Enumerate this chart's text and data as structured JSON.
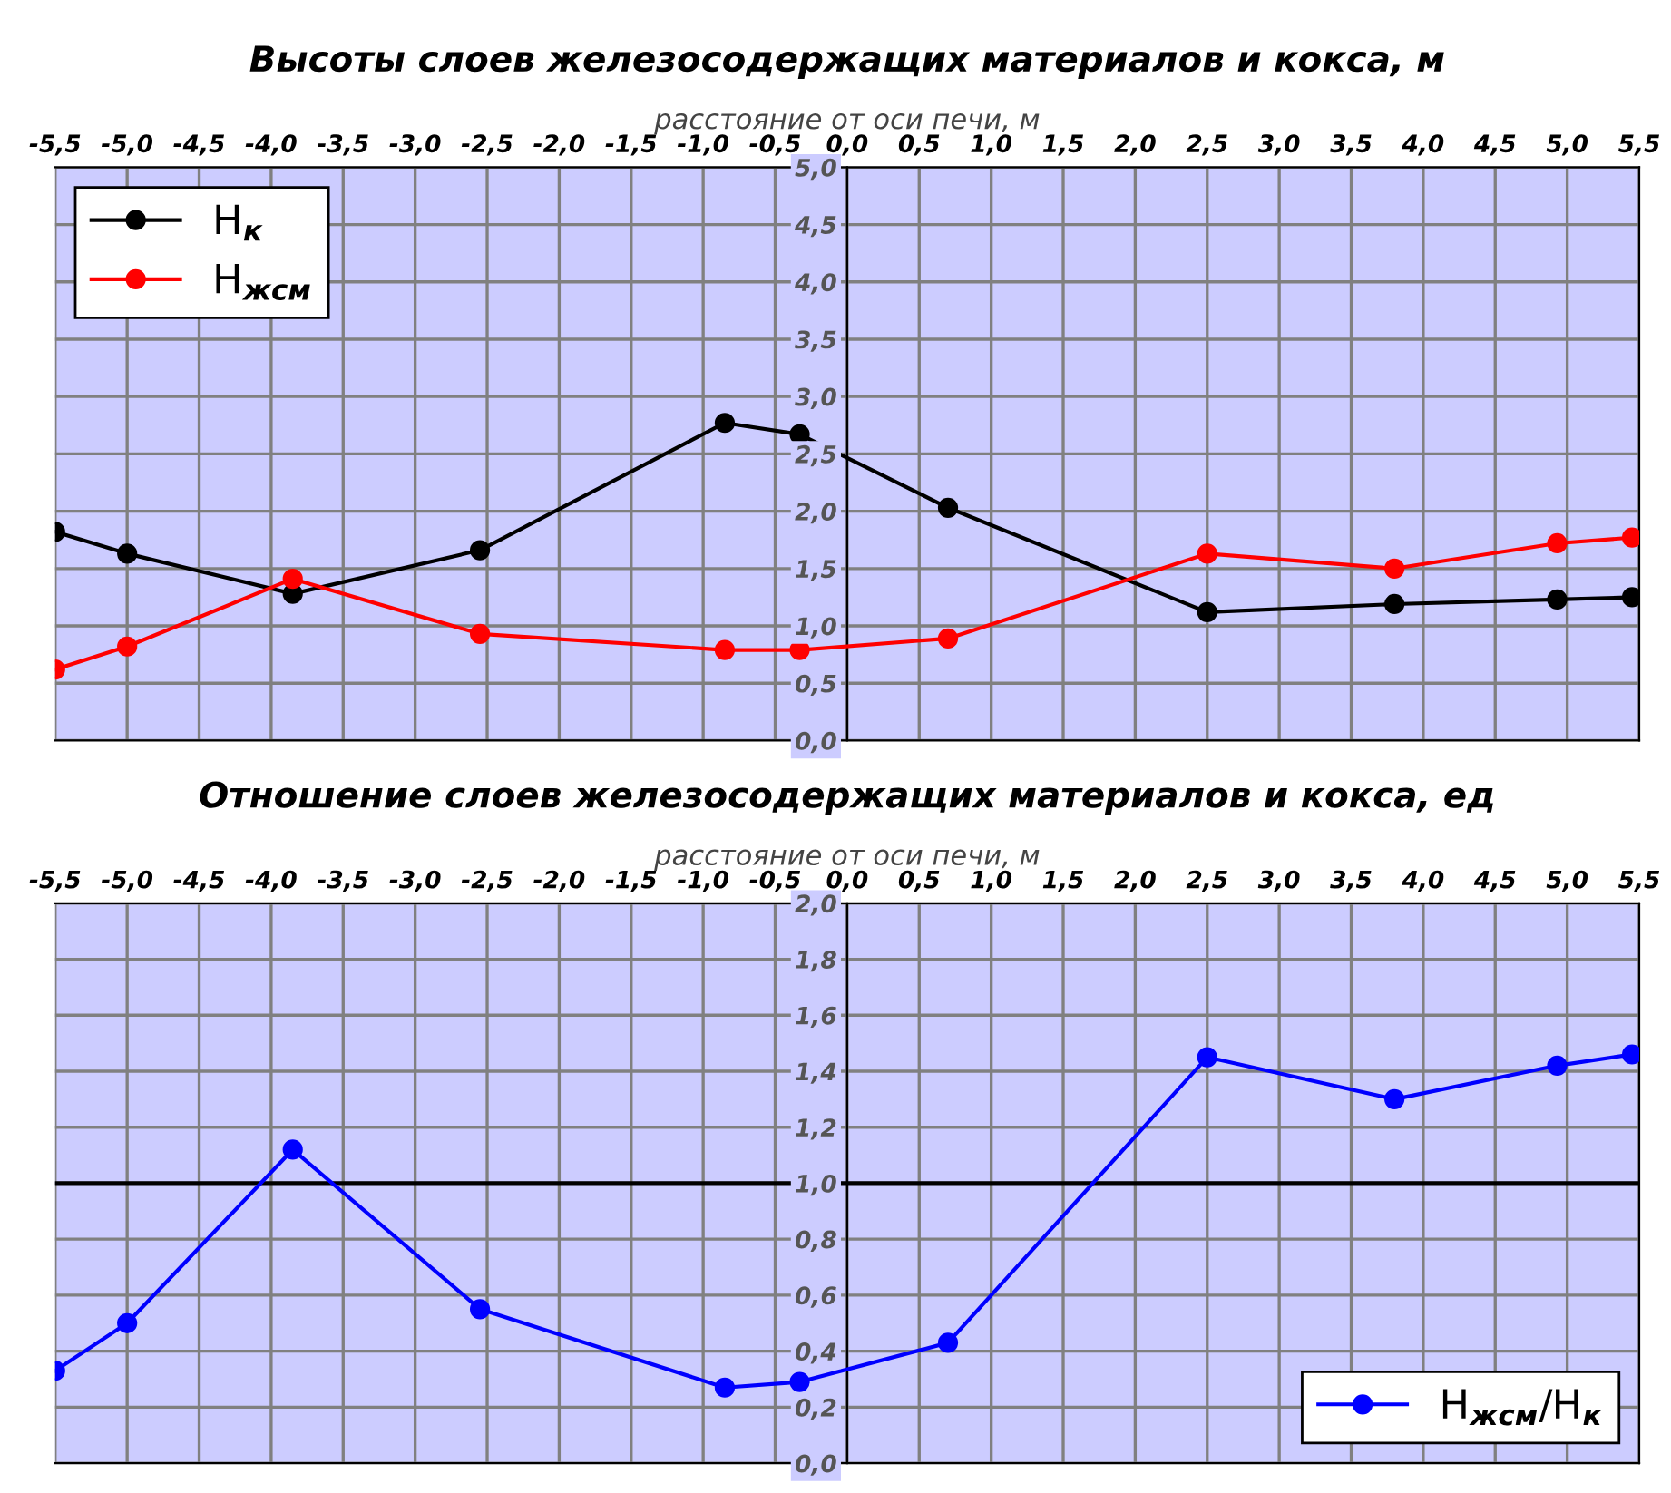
{
  "chart_data": [
    {
      "type": "line",
      "title": "Высоты слоев железосодержащих материалов и кокса, м",
      "xlabel": "расстояние от оси печи, м",
      "x": [
        -5.5,
        -5.0,
        -3.85,
        -2.55,
        -0.85,
        -0.33,
        0.7,
        2.5,
        3.8,
        4.93,
        5.45
      ],
      "series": [
        {
          "name": "H$_{к}$",
          "color": "#000000",
          "values": [
            1.82,
            1.63,
            1.28,
            1.66,
            2.77,
            2.67,
            2.03,
            1.12,
            1.19,
            1.23,
            1.25
          ]
        },
        {
          "name": "H$_{жсм}$",
          "color": "#ff0000",
          "values": [
            0.62,
            0.82,
            1.41,
            0.93,
            0.79,
            0.79,
            0.89,
            1.63,
            1.5,
            1.72,
            1.77
          ]
        }
      ],
      "xlim": [
        -5.5,
        5.5
      ],
      "xticks": [
        {
          "value": -5.5,
          "label": "-5,5"
        },
        {
          "value": -5.0,
          "label": "-5,0"
        },
        {
          "value": -4.5,
          "label": "-4,5"
        },
        {
          "value": -4.0,
          "label": "-4,0"
        },
        {
          "value": -3.5,
          "label": "-3,5"
        },
        {
          "value": -3.0,
          "label": "-3,0"
        },
        {
          "value": -2.5,
          "label": "-2,5"
        },
        {
          "value": -2.0,
          "label": "-2,0"
        },
        {
          "value": -1.5,
          "label": "-1,5"
        },
        {
          "value": -1.0,
          "label": "-1,0"
        },
        {
          "value": -0.5,
          "label": "-0,5"
        },
        {
          "value": 0.0,
          "label": "0,0"
        },
        {
          "value": 0.5,
          "label": "0,5"
        },
        {
          "value": 1.0,
          "label": "1,0"
        },
        {
          "value": 1.5,
          "label": "1,5"
        },
        {
          "value": 2.0,
          "label": "2,0"
        },
        {
          "value": 2.5,
          "label": "2,5"
        },
        {
          "value": 3.0,
          "label": "3,0"
        },
        {
          "value": 3.5,
          "label": "3,5"
        },
        {
          "value": 4.0,
          "label": "4,0"
        },
        {
          "value": 4.5,
          "label": "4,5"
        },
        {
          "value": 5.0,
          "label": "5,0"
        },
        {
          "value": 5.5,
          "label": "5,5"
        }
      ],
      "ylim": [
        0,
        5
      ],
      "yticks": [
        {
          "value": 0.0,
          "label": "0,0"
        },
        {
          "value": 0.5,
          "label": "0,5"
        },
        {
          "value": 1.0,
          "label": "1,0"
        },
        {
          "value": 1.5,
          "label": "1,5"
        },
        {
          "value": 2.0,
          "label": "2,0"
        },
        {
          "value": 2.5,
          "label": "2,5"
        },
        {
          "value": 3.0,
          "label": "3,0"
        },
        {
          "value": 3.5,
          "label": "3,5"
        },
        {
          "value": 4.0,
          "label": "4,0"
        },
        {
          "value": 4.5,
          "label": "4,5"
        },
        {
          "value": 5.0,
          "label": "5,0"
        }
      ],
      "grid": true,
      "legend": "upper left",
      "marker": "circle",
      "line_style": "solid"
    },
    {
      "type": "line",
      "title": "Отношение слоев железосодержащих материалов и кокса, ед",
      "xlabel": "расстояние от оси печи, м",
      "x": [
        -5.5,
        -5.0,
        -3.85,
        -2.55,
        -0.85,
        -0.33,
        0.7,
        2.5,
        3.8,
        4.93,
        5.45
      ],
      "series": [
        {
          "name": "H$_{жсм}$/H$_{к}$",
          "color": "#0000ff",
          "values": [
            0.33,
            0.5,
            1.12,
            0.55,
            0.27,
            0.29,
            0.43,
            1.45,
            1.3,
            1.42,
            1.46
          ]
        }
      ],
      "xlim": [
        -5.5,
        5.5
      ],
      "xticks": [
        {
          "value": -5.5,
          "label": "-5,5"
        },
        {
          "value": -5.0,
          "label": "-5,0"
        },
        {
          "value": -4.5,
          "label": "-4,5"
        },
        {
          "value": -4.0,
          "label": "-4,0"
        },
        {
          "value": -3.5,
          "label": "-3,5"
        },
        {
          "value": -3.0,
          "label": "-3,0"
        },
        {
          "value": -2.5,
          "label": "-2,5"
        },
        {
          "value": -2.0,
          "label": "-2,0"
        },
        {
          "value": -1.5,
          "label": "-1,5"
        },
        {
          "value": -1.0,
          "label": "-1,0"
        },
        {
          "value": -0.5,
          "label": "-0,5"
        },
        {
          "value": 0.0,
          "label": "0,0"
        },
        {
          "value": 0.5,
          "label": "0,5"
        },
        {
          "value": 1.0,
          "label": "1,0"
        },
        {
          "value": 1.5,
          "label": "1,5"
        },
        {
          "value": 2.0,
          "label": "2,0"
        },
        {
          "value": 2.5,
          "label": "2,5"
        },
        {
          "value": 3.0,
          "label": "3,0"
        },
        {
          "value": 3.5,
          "label": "3,5"
        },
        {
          "value": 4.0,
          "label": "4,0"
        },
        {
          "value": 4.5,
          "label": "4,5"
        },
        {
          "value": 5.0,
          "label": "5,0"
        },
        {
          "value": 5.5,
          "label": "5,5"
        }
      ],
      "ylim": [
        0,
        2
      ],
      "yticks": [
        {
          "value": 0.0,
          "label": "0,0"
        },
        {
          "value": 0.2,
          "label": "0,2"
        },
        {
          "value": 0.4,
          "label": "0,4"
        },
        {
          "value": 0.6,
          "label": "0,6"
        },
        {
          "value": 0.8,
          "label": "0,8"
        },
        {
          "value": 1.0,
          "label": "1,0"
        },
        {
          "value": 1.2,
          "label": "1,2"
        },
        {
          "value": 1.4,
          "label": "1,4"
        },
        {
          "value": 1.6,
          "label": "1,6"
        },
        {
          "value": 1.8,
          "label": "1,8"
        },
        {
          "value": 2.0,
          "label": "2,0"
        }
      ],
      "ref_lines": [
        {
          "axis": "y",
          "value": 1.0,
          "color": "#000000"
        }
      ],
      "grid": true,
      "legend": "lower right",
      "marker": "circle",
      "line_style": "solid"
    }
  ]
}
